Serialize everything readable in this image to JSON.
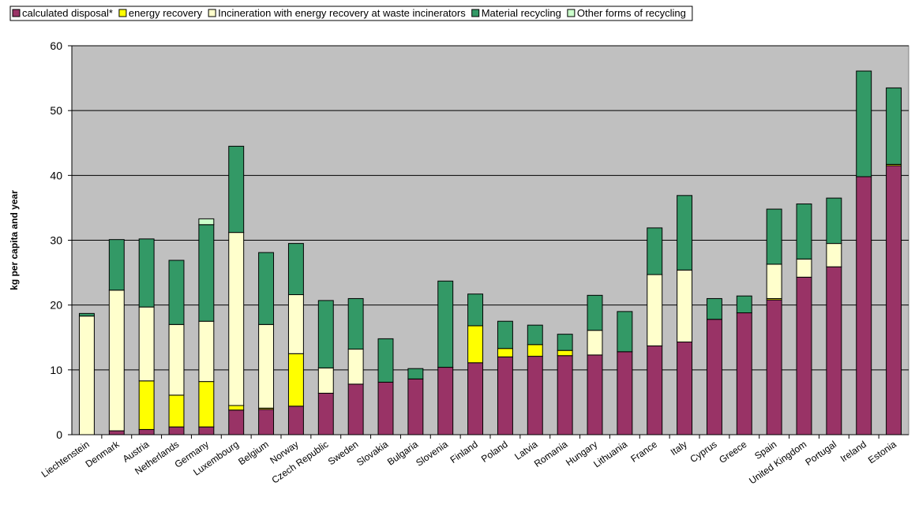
{
  "chart_data": {
    "type": "bar",
    "stacked": true,
    "title": "",
    "xlabel": "",
    "ylabel": "kg per capita and year",
    "ylim": [
      0,
      60
    ],
    "yticks": [
      "0",
      "10",
      "20",
      "30",
      "40",
      "50",
      "60"
    ],
    "grid": true,
    "legend_position": "top",
    "plot_background": "#c0c0c0",
    "categories": [
      "Liechtenstein",
      "Denmark",
      "Austria",
      "Netherlands",
      "Germany",
      "Luxembourg",
      "Belgium",
      "Norway",
      "Czech Republic",
      "Sweden",
      "Slovakia",
      "Bulgaria",
      "Slovenia",
      "Finland",
      "Poland",
      "Latvia",
      "Romania",
      "Hungary",
      "Lithuania",
      "France",
      "Italy",
      "Cyprus",
      "Greece",
      "Spain",
      "United Kingdom",
      "Portugal",
      "Ireland",
      "Estonia"
    ],
    "series": [
      {
        "name": "calculated disposal*",
        "color": "#993366",
        "values": [
          0,
          0.6,
          0.8,
          1.2,
          1.2,
          3.8,
          3.9,
          4.4,
          6.4,
          7.8,
          8.1,
          8.6,
          10.4,
          11.1,
          12.0,
          12.1,
          12.2,
          12.3,
          12.8,
          13.7,
          14.3,
          17.8,
          18.8,
          20.8,
          24.3,
          25.9,
          39.8,
          41.5
        ]
      },
      {
        "name": "energy recovery",
        "color": "#ffff00",
        "values": [
          0,
          0,
          7.5,
          4.9,
          7.0,
          0.7,
          0.2,
          8.1,
          0,
          0,
          0,
          0,
          0,
          5.7,
          1.3,
          1.8,
          0.8,
          0,
          0,
          0,
          0,
          0,
          0,
          0.2,
          0,
          0,
          0,
          0.2
        ]
      },
      {
        "name": "Incineration with energy recovery at waste incinerators",
        "color": "#ffffcc",
        "values": [
          18.3,
          21.7,
          11.4,
          10.9,
          9.3,
          26.7,
          12.9,
          9.1,
          3.9,
          5.4,
          0,
          0,
          0,
          0,
          0,
          0,
          0,
          3.8,
          0,
          11.0,
          11.1,
          0,
          0,
          5.3,
          2.8,
          3.6,
          0,
          0
        ]
      },
      {
        "name": "Material recycling",
        "color": "#339966",
        "values": [
          0.4,
          7.8,
          10.5,
          9.9,
          14.9,
          13.3,
          11.1,
          7.9,
          10.4,
          7.8,
          6.7,
          1.6,
          13.3,
          4.9,
          4.2,
          3.0,
          2.5,
          5.4,
          6.2,
          7.2,
          11.5,
          3.2,
          2.6,
          8.5,
          8.5,
          7.0,
          16.3,
          11.8
        ]
      },
      {
        "name": "Other forms of recycling",
        "color": "#ccffcc",
        "values": [
          0,
          0,
          0,
          0,
          0.9,
          0,
          0,
          0,
          0,
          0,
          0,
          0,
          0,
          0,
          0,
          0,
          0,
          0,
          0,
          0,
          0,
          0,
          0,
          0,
          0,
          0,
          0,
          0
        ]
      }
    ]
  }
}
